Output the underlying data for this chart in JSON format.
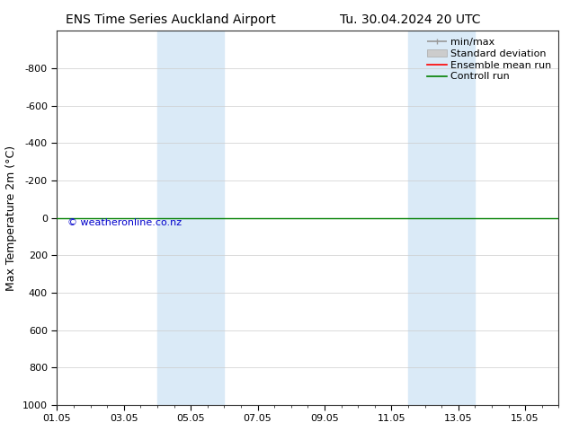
{
  "title": "ENS Time Series Auckland Airport",
  "title2": "Tu. 30.04.2024 20 UTC",
  "ylabel": "Max Temperature 2m (°C)",
  "watermark": "© weatheronline.co.nz",
  "xtick_labels": [
    "01.05",
    "03.05",
    "05.05",
    "07.05",
    "09.05",
    "11.05",
    "13.05",
    "15.05"
  ],
  "xtick_positions": [
    0,
    2,
    4,
    6,
    8,
    10,
    12,
    14
  ],
  "xlim": [
    0,
    15
  ],
  "ylim": [
    -1000,
    1000
  ],
  "ytick_positions": [
    -800,
    -600,
    -400,
    -200,
    0,
    200,
    400,
    600,
    800,
    1000
  ],
  "ytick_labels": [
    "-800",
    "-600",
    "-400",
    "-200",
    "0",
    "200",
    "400",
    "600",
    "800",
    "1000"
  ],
  "green_line_y": 0,
  "blue_bands": [
    {
      "xmin": 3.0,
      "xmax": 5.0
    },
    {
      "xmin": 10.5,
      "xmax": 12.5
    }
  ],
  "blue_band_color": "#daeaf7",
  "grid_color": "#cccccc",
  "bg_color": "#ffffff",
  "legend_items": [
    {
      "label": "min/max",
      "color": "#999999",
      "lw": 1.2
    },
    {
      "label": "Standard deviation",
      "color": "#cccccc",
      "lw": 6
    },
    {
      "label": "Ensemble mean run",
      "color": "#ff0000",
      "lw": 1.2
    },
    {
      "label": "Controll run",
      "color": "#008000",
      "lw": 1.2
    }
  ],
  "title_fontsize": 10,
  "ylabel_fontsize": 9,
  "tick_fontsize": 8,
  "legend_fontsize": 8,
  "watermark_color": "#0000cc",
  "watermark_fontsize": 8
}
